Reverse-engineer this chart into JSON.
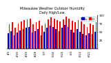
{
  "title": "Milwaukee Weather Outdoor Humidity",
  "subtitle": "Daily High/Low",
  "legend_high": "Hi",
  "legend_low": "Lo",
  "color_high": "#ff0000",
  "color_low": "#0000cc",
  "background_color": "#ffffff",
  "ylim": [
    0,
    100
  ],
  "ylabel_ticks": [
    25,
    50,
    75,
    100
  ],
  "dates": [
    "4/1",
    "4/4",
    "4/7",
    "4/10",
    "4/13",
    "4/16",
    "4/19",
    "4/22",
    "4/25",
    "4/28",
    "5/1",
    "5/4",
    "5/7",
    "5/10",
    "5/13",
    "5/16",
    "5/19",
    "5/22",
    "5/25",
    "5/28",
    "5/31",
    "6/3",
    "6/6",
    "6/9",
    "6/12",
    "6/15",
    "6/18",
    "6/21",
    "6/24",
    "6/27"
  ],
  "highs": [
    72,
    78,
    62,
    75,
    80,
    85,
    88,
    90,
    72,
    78,
    82,
    68,
    75,
    88,
    93,
    90,
    85,
    80,
    88,
    95,
    90,
    82,
    78,
    85,
    80,
    72,
    65,
    74,
    70,
    78
  ],
  "lows": [
    45,
    52,
    38,
    48,
    54,
    58,
    62,
    65,
    48,
    52,
    58,
    40,
    50,
    62,
    68,
    65,
    58,
    52,
    63,
    70,
    65,
    55,
    48,
    58,
    50,
    44,
    38,
    46,
    43,
    50
  ]
}
